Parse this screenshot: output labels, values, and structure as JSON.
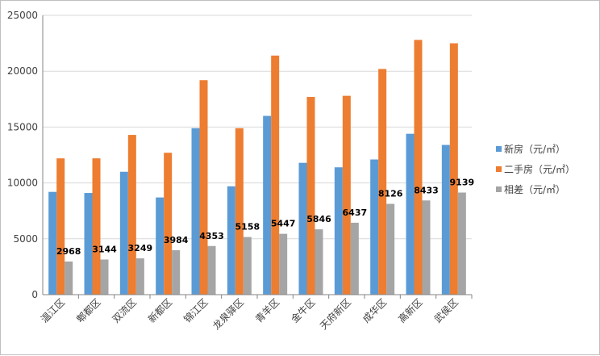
{
  "chart_data": {
    "type": "bar",
    "categories": [
      "温江区",
      "郫都区",
      "双流区",
      "新都区",
      "锦江区",
      "龙泉驿区",
      "青羊区",
      "金牛区",
      "天府新区",
      "成华区",
      "高新区",
      "武侯区"
    ],
    "series": [
      {
        "name": "新房（元/㎡）",
        "color": "#5b9bd5",
        "values": [
          9200,
          9100,
          11000,
          8700,
          14900,
          9700,
          16000,
          11800,
          11400,
          12100,
          14400,
          13400
        ],
        "labels": false
      },
      {
        "name": "二手房（元/㎡）",
        "color": "#ed7d31",
        "values": [
          12200,
          12200,
          14300,
          12700,
          19200,
          14900,
          21400,
          17700,
          17800,
          20200,
          22800,
          22500
        ],
        "labels": false
      },
      {
        "name": "相差（元/㎡）",
        "color": "#a5a5a5",
        "values": [
          2968,
          3144,
          3249,
          3984,
          4353,
          5158,
          5447,
          5846,
          6437,
          8126,
          8433,
          9139
        ],
        "labels": true
      }
    ],
    "yticks": [
      0,
      5000,
      10000,
      15000,
      20000,
      25000
    ],
    "ylim": [
      0,
      25000
    ],
    "grid": true,
    "legend": "right",
    "title": "",
    "xlabel": "",
    "ylabel": ""
  }
}
